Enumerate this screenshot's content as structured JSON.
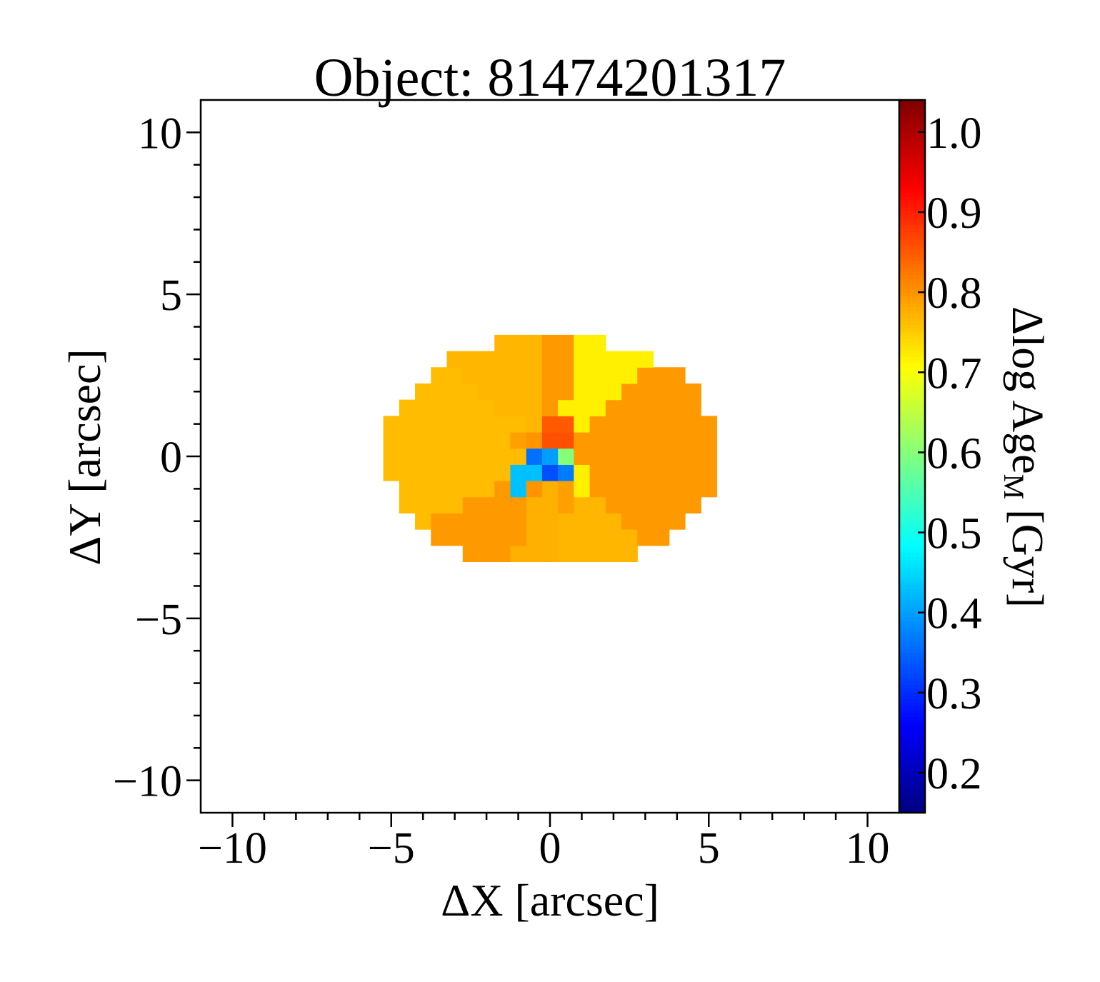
{
  "chart_data": {
    "type": "heatmap",
    "title": "Object: 81474201317",
    "xlabel": "ΔX [arcsec]",
    "ylabel": "ΔY [arcsec]",
    "colorbar_label": "Δlog Age",
    "colorbar_label_sub": "M",
    "colorbar_label_unit": "[Gyr]",
    "colormap": "jet",
    "xlim": [
      -11,
      11
    ],
    "ylim": [
      -11,
      11
    ],
    "clim": [
      0.15,
      1.04
    ],
    "x_ticks": [
      -10,
      -5,
      0,
      5,
      10
    ],
    "x_tick_labels": [
      "−10",
      "−5",
      "0",
      "5",
      "10"
    ],
    "y_ticks": [
      -10,
      -5,
      0,
      5,
      10
    ],
    "y_tick_labels": [
      "−10",
      "−5",
      "0",
      "5",
      "10"
    ],
    "colorbar_ticks": [
      0.2,
      0.3,
      0.4,
      0.5,
      0.6,
      0.7,
      0.8,
      0.9,
      1.0
    ],
    "colorbar_tick_labels": [
      "0.2",
      "0.3",
      "0.4",
      "0.5",
      "0.6",
      "0.7",
      "0.8",
      "0.9",
      "1.0"
    ],
    "grid": false,
    "pixel_scale_arcsec": 0.5,
    "map": {
      "ellipse": {
        "center": [
          0.1,
          0.1
        ],
        "semi_major": 5.3,
        "semi_minor": 3.6
      },
      "default_value": 0.77,
      "sectors": [
        {
          "angle_range_deg": [
            100,
            140
          ],
          "value": 0.77
        },
        {
          "angle_range_deg": [
            140,
            210
          ],
          "value": 0.765
        },
        {
          "angle_range_deg": [
            210,
            248
          ],
          "value": 0.795
        },
        {
          "angle_range_deg": [
            248,
            275
          ],
          "value": 0.775
        },
        {
          "angle_range_deg": [
            275,
            318
          ],
          "value": 0.77
        },
        {
          "angle_range_deg": [
            318,
            360
          ],
          "value": 0.795
        },
        {
          "angle_range_deg": [
            0,
            40
          ],
          "value": 0.795
        },
        {
          "angle_range_deg": [
            40,
            78
          ],
          "value": 0.72
        },
        {
          "angle_range_deg": [
            78,
            100
          ],
          "value": 0.795
        }
      ],
      "pixels": [
        {
          "x": 0.0,
          "y": 1.0,
          "value": 0.85
        },
        {
          "x": 0.5,
          "y": 1.0,
          "value": 0.85
        },
        {
          "x": 0.0,
          "y": 0.5,
          "value": 0.86
        },
        {
          "x": 0.5,
          "y": 0.5,
          "value": 0.86
        },
        {
          "x": -0.5,
          "y": 0.5,
          "value": 0.8
        },
        {
          "x": -1.0,
          "y": 0.5,
          "value": 0.79
        },
        {
          "x": -0.5,
          "y": 0.0,
          "value": 0.36
        },
        {
          "x": 0.0,
          "y": 0.0,
          "value": 0.4
        },
        {
          "x": 0.5,
          "y": 0.0,
          "value": 0.6
        },
        {
          "x": -1.0,
          "y": -0.5,
          "value": 0.43
        },
        {
          "x": -0.5,
          "y": -0.5,
          "value": 0.43
        },
        {
          "x": 0.0,
          "y": -0.5,
          "value": 0.33
        },
        {
          "x": 0.5,
          "y": -0.5,
          "value": 0.37
        },
        {
          "x": -1.0,
          "y": -1.0,
          "value": 0.43
        },
        {
          "x": -0.5,
          "y": -1.0,
          "value": 0.8
        },
        {
          "x": 1.0,
          "y": -0.5,
          "value": 0.72
        },
        {
          "x": 1.0,
          "y": -1.0,
          "value": 0.72
        },
        {
          "x": 0.5,
          "y": -1.0,
          "value": 0.79
        },
        {
          "x": 0.5,
          "y": -1.5,
          "value": 0.79
        }
      ]
    }
  }
}
